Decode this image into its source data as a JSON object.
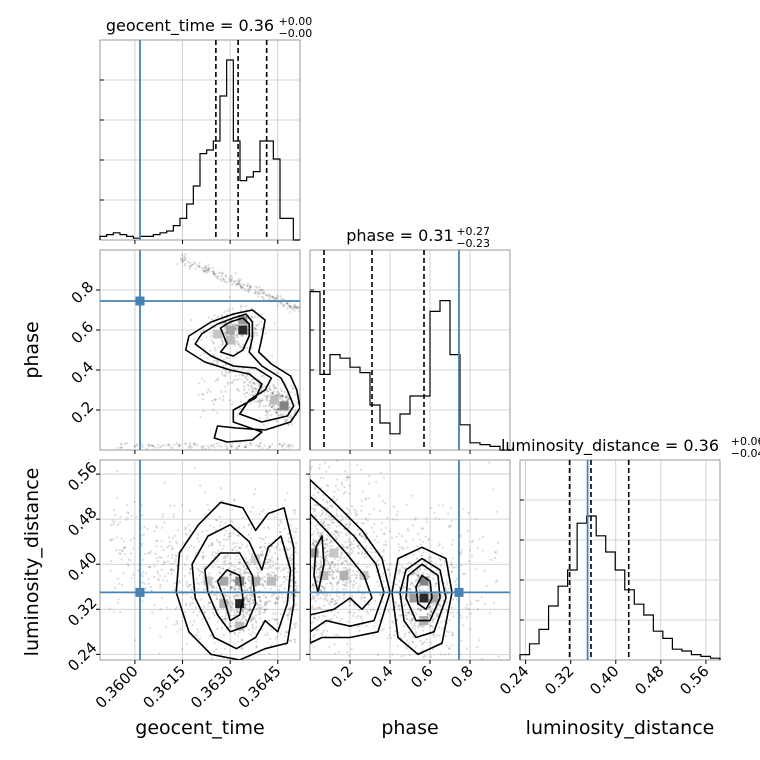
{
  "chart_data": {
    "type": "corner",
    "truth_color": "#4682b4",
    "params": [
      {
        "name": "geocent_time",
        "xlabel": "geocent_time",
        "title_main": "geocent_time = 0.36",
        "title_plus": "+0.00",
        "title_minus": "−0.00",
        "range": [
          0.3589,
          0.3652
        ],
        "ticks": [
          0.36,
          0.3615,
          0.363,
          0.3645
        ],
        "tick_labels": [
          "0.3600",
          "0.3615",
          "0.3630",
          "0.3645"
        ],
        "truth": 0.36016,
        "quantiles": [
          0.36255,
          0.36325,
          0.36415
        ],
        "hist": [
          0.02,
          0.03,
          0.04,
          0.03,
          0.02,
          0.01,
          0.02,
          0.02,
          0.03,
          0.04,
          0.05,
          0.08,
          0.12,
          0.2,
          0.3,
          0.48,
          0.5,
          0.55,
          0.8,
          1.0,
          0.55,
          0.33,
          0.35,
          0.38,
          0.55,
          0.55,
          0.45,
          0.12,
          0.12,
          0.0
        ]
      },
      {
        "name": "phase",
        "xlabel": "phase",
        "ylabel": "phase",
        "title_main": "phase = 0.31",
        "title_plus": "+0.27",
        "title_minus": "−0.23",
        "range": [
          0.0,
          1.0
        ],
        "ticks": [
          0.2,
          0.4,
          0.6,
          0.8
        ],
        "tick_labels": [
          "0.2",
          "0.4",
          "0.6",
          "0.8"
        ],
        "truth": 0.745,
        "quantiles": [
          0.07,
          0.31,
          0.57
        ],
        "hist": [
          0.88,
          0.42,
          0.53,
          0.51,
          0.46,
          0.43,
          0.25,
          0.15,
          0.09,
          0.2,
          0.3,
          0.3,
          0.77,
          0.83,
          0.53,
          0.14,
          0.04,
          0.03,
          0.02,
          0.0
        ]
      },
      {
        "name": "luminosity_distance",
        "xlabel": "luminosity_distance",
        "ylabel": "luminosity_distance",
        "title_main": "luminosity_distance = 0.36",
        "title_plus": "+0.06",
        "title_minus": "−0.04",
        "range": [
          0.23,
          0.585
        ],
        "ticks": [
          0.24,
          0.32,
          0.4,
          0.48,
          0.56
        ],
        "tick_labels": [
          "0.24",
          "0.32",
          "0.40",
          "0.48",
          "0.56"
        ],
        "truth": 0.35,
        "quantiles": [
          0.318,
          0.356,
          0.423
        ],
        "hist": [
          0.03,
          0.09,
          0.17,
          0.3,
          0.41,
          0.5,
          0.76,
          0.8,
          0.69,
          0.6,
          0.5,
          0.39,
          0.31,
          0.25,
          0.16,
          0.12,
          0.06,
          0.05,
          0.03,
          0.02,
          0.01
        ]
      }
    ],
    "contours": {
      "phase_vs_geocent_time": [
        [
          [
            0.3629,
            0.53
          ],
          [
            0.3627,
            0.61
          ],
          [
            0.363,
            0.64
          ],
          [
            0.3634,
            0.66
          ],
          [
            0.3636,
            0.63
          ],
          [
            0.3636,
            0.57
          ],
          [
            0.3634,
            0.5
          ],
          [
            0.3631,
            0.47
          ],
          [
            0.3627,
            0.49
          ]
        ],
        [
          [
            0.3624,
            0.47
          ],
          [
            0.3619,
            0.53
          ],
          [
            0.3621,
            0.58
          ],
          [
            0.3626,
            0.63
          ],
          [
            0.3631,
            0.66
          ],
          [
            0.3635,
            0.68
          ],
          [
            0.3637,
            0.64
          ],
          [
            0.3637,
            0.56
          ],
          [
            0.3636,
            0.49
          ],
          [
            0.364,
            0.42
          ],
          [
            0.3646,
            0.36
          ],
          [
            0.3648,
            0.3
          ],
          [
            0.365,
            0.22
          ],
          [
            0.3648,
            0.17
          ],
          [
            0.364,
            0.14
          ],
          [
            0.3633,
            0.18
          ],
          [
            0.3636,
            0.25
          ],
          [
            0.3641,
            0.3
          ],
          [
            0.3643,
            0.36
          ],
          [
            0.3638,
            0.41
          ],
          [
            0.3631,
            0.42
          ]
        ],
        [
          [
            0.3622,
            0.44
          ],
          [
            0.3616,
            0.5
          ],
          [
            0.3617,
            0.57
          ],
          [
            0.3624,
            0.64
          ],
          [
            0.3631,
            0.68
          ],
          [
            0.3637,
            0.7
          ],
          [
            0.3641,
            0.65
          ],
          [
            0.364,
            0.56
          ],
          [
            0.3639,
            0.49
          ],
          [
            0.3643,
            0.43
          ],
          [
            0.3649,
            0.37
          ],
          [
            0.3651,
            0.3
          ],
          [
            0.3652,
            0.21
          ],
          [
            0.3649,
            0.14
          ],
          [
            0.3641,
            0.1
          ],
          [
            0.3632,
            0.11
          ],
          [
            0.3626,
            0.12
          ],
          [
            0.3625,
            0.06
          ],
          [
            0.3629,
            0.04
          ],
          [
            0.3637,
            0.05
          ],
          [
            0.364,
            0.09
          ],
          [
            0.3631,
            0.14
          ],
          [
            0.3631,
            0.2
          ],
          [
            0.3638,
            0.26
          ],
          [
            0.364,
            0.33
          ],
          [
            0.3636,
            0.38
          ],
          [
            0.363,
            0.4
          ]
        ]
      ],
      "luminosity_distance_vs_geocent_time": [
        [
          [
            0.3628,
            0.34
          ],
          [
            0.3626,
            0.37
          ],
          [
            0.3629,
            0.39
          ],
          [
            0.3633,
            0.38
          ],
          [
            0.3634,
            0.34
          ],
          [
            0.3633,
            0.31
          ],
          [
            0.363,
            0.3
          ]
        ],
        [
          [
            0.3623,
            0.35
          ],
          [
            0.3622,
            0.39
          ],
          [
            0.3627,
            0.42
          ],
          [
            0.3633,
            0.42
          ],
          [
            0.3637,
            0.38
          ],
          [
            0.3638,
            0.33
          ],
          [
            0.3635,
            0.29
          ],
          [
            0.363,
            0.28
          ],
          [
            0.3626,
            0.31
          ]
        ],
        [
          [
            0.3619,
            0.34
          ],
          [
            0.3618,
            0.4
          ],
          [
            0.3623,
            0.45
          ],
          [
            0.363,
            0.47
          ],
          [
            0.3636,
            0.44
          ],
          [
            0.364,
            0.39
          ],
          [
            0.3642,
            0.43
          ],
          [
            0.3646,
            0.45
          ],
          [
            0.3649,
            0.39
          ],
          [
            0.3648,
            0.33
          ],
          [
            0.3645,
            0.28
          ],
          [
            0.3641,
            0.3
          ],
          [
            0.3638,
            0.27
          ],
          [
            0.3632,
            0.25
          ],
          [
            0.3625,
            0.27
          ]
        ],
        [
          [
            0.3613,
            0.35
          ],
          [
            0.3614,
            0.42
          ],
          [
            0.362,
            0.47
          ],
          [
            0.3627,
            0.51
          ],
          [
            0.3634,
            0.5
          ],
          [
            0.3638,
            0.46
          ],
          [
            0.3642,
            0.49
          ],
          [
            0.3647,
            0.5
          ],
          [
            0.365,
            0.43
          ],
          [
            0.365,
            0.33
          ],
          [
            0.3648,
            0.26
          ],
          [
            0.3641,
            0.25
          ],
          [
            0.3633,
            0.23
          ],
          [
            0.3624,
            0.24
          ],
          [
            0.3617,
            0.28
          ]
        ]
      ],
      "luminosity_distance_vs_phase": [
        [
          [
            0.54,
            0.33
          ],
          [
            0.53,
            0.36
          ],
          [
            0.56,
            0.38
          ],
          [
            0.6,
            0.37
          ],
          [
            0.61,
            0.34
          ],
          [
            0.58,
            0.32
          ]
        ],
        [
          [
            0.48,
            0.34
          ],
          [
            0.49,
            0.38
          ],
          [
            0.56,
            0.4
          ],
          [
            0.64,
            0.38
          ],
          [
            0.65,
            0.34
          ],
          [
            0.6,
            0.3
          ],
          [
            0.53,
            0.3
          ]
        ],
        [
          [
            0.45,
            0.35
          ],
          [
            0.48,
            0.39
          ],
          [
            0.56,
            0.41
          ],
          [
            0.65,
            0.39
          ],
          [
            0.68,
            0.34
          ],
          [
            0.62,
            0.28
          ],
          [
            0.53,
            0.27
          ],
          [
            0.47,
            0.3
          ]
        ],
        [
          [
            0.41,
            0.35
          ],
          [
            0.44,
            0.41
          ],
          [
            0.56,
            0.43
          ],
          [
            0.68,
            0.41
          ],
          [
            0.71,
            0.35
          ],
          [
            0.66,
            0.26
          ],
          [
            0.54,
            0.24
          ],
          [
            0.44,
            0.27
          ]
        ],
        [
          [
            0.03,
            0.43
          ],
          [
            0.02,
            0.38
          ],
          [
            0.04,
            0.35
          ],
          [
            0.07,
            0.4
          ],
          [
            0.06,
            0.45
          ]
        ],
        [
          [
            0.0,
            0.49
          ],
          [
            0.08,
            0.46
          ],
          [
            0.18,
            0.42
          ],
          [
            0.27,
            0.38
          ],
          [
            0.31,
            0.34
          ],
          [
            0.26,
            0.32
          ],
          [
            0.2,
            0.34
          ],
          [
            0.12,
            0.32
          ],
          [
            0.0,
            0.31
          ]
        ],
        [
          [
            0.0,
            0.52
          ],
          [
            0.1,
            0.49
          ],
          [
            0.22,
            0.45
          ],
          [
            0.33,
            0.4
          ],
          [
            0.37,
            0.35
          ],
          [
            0.32,
            0.3
          ],
          [
            0.2,
            0.29
          ],
          [
            0.08,
            0.3
          ],
          [
            0.0,
            0.28
          ]
        ],
        [
          [
            0.0,
            0.55
          ],
          [
            0.12,
            0.51
          ],
          [
            0.26,
            0.46
          ],
          [
            0.36,
            0.41
          ],
          [
            0.4,
            0.35
          ],
          [
            0.34,
            0.28
          ],
          [
            0.2,
            0.27
          ],
          [
            0.06,
            0.27
          ],
          [
            0.0,
            0.26
          ]
        ]
      ]
    }
  }
}
